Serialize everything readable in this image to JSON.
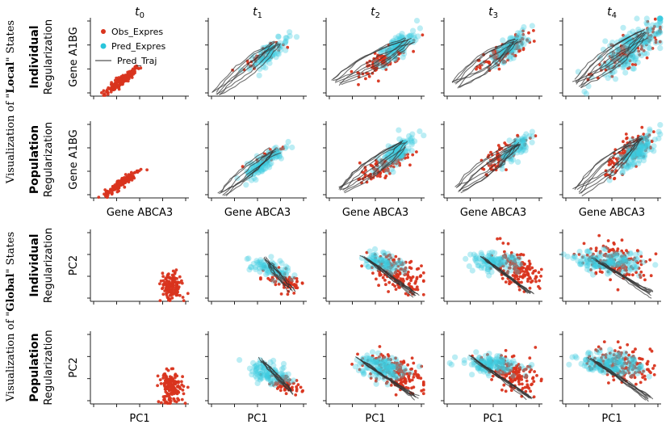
{
  "chart_data": {
    "type": "scatter",
    "time_labels": [
      {
        "base": "t",
        "sub": "0"
      },
      {
        "base": "t",
        "sub": "1"
      },
      {
        "base": "t",
        "sub": "2"
      },
      {
        "base": "t",
        "sub": "3"
      },
      {
        "base": "t",
        "sub": "4"
      }
    ],
    "group_labels": {
      "local": {
        "prefix": "Visualization of \"",
        "bold": "Local",
        "suffix": "\" States"
      },
      "global": {
        "prefix": "Visualization of \"",
        "bold": "Global",
        "suffix": "\" States"
      }
    },
    "row_labels": [
      {
        "bold": "Individual",
        "normal": "Regularization",
        "ylabel": "Gene A1BG",
        "xlabel": ""
      },
      {
        "bold": "Population",
        "normal": "Regularization",
        "ylabel": "Gene A1BG",
        "xlabel": "Gene ABCA3"
      },
      {
        "bold": "Individual",
        "normal": "Regularization",
        "ylabel": "PC2",
        "xlabel": ""
      },
      {
        "bold": "Population",
        "normal": "Regularization",
        "ylabel": "PC2",
        "xlabel": "PC1"
      }
    ],
    "legend": [
      {
        "label": "Obs_Expres",
        "kind": "point",
        "color": "#d9341e"
      },
      {
        "label": "Pred_Expres",
        "kind": "point",
        "color": "#29c5db"
      },
      {
        "label": "Pred_Traj",
        "kind": "line",
        "color": "#555555"
      }
    ],
    "colors": {
      "obs": "#d9341e",
      "pred": "#3ccbe0",
      "traj": "#333333"
    },
    "description_note": "Approximate point clouds read from the figure; coordinates are normalized axis units (0-1).",
    "panels": [
      [
        {
          "obs": {
            "cx": 0.32,
            "cy": 0.2,
            "sx": 0.09,
            "sy": 0.09,
            "corr": 0.93,
            "n": 150
          },
          "pred": null,
          "traj": null
        },
        {
          "obs": {
            "cx": 0.56,
            "cy": 0.52,
            "sx": 0.09,
            "sy": 0.08,
            "corr": 0.85,
            "n": 60
          },
          "pred": {
            "cx": 0.62,
            "cy": 0.55,
            "sx": 0.1,
            "sy": 0.1,
            "corr": 0.8,
            "n": 90
          },
          "traj": {
            "start": [
              0.08,
              0.02
            ],
            "end": [
              0.7,
              0.68
            ],
            "n": 7,
            "spread": 0.07,
            "bend": 0.04
          }
        },
        {
          "obs": {
            "cx": 0.6,
            "cy": 0.48,
            "sx": 0.12,
            "sy": 0.1,
            "corr": 0.8,
            "n": 120
          },
          "pred": {
            "cx": 0.72,
            "cy": 0.62,
            "sx": 0.1,
            "sy": 0.12,
            "corr": 0.75,
            "n": 110
          },
          "traj": {
            "start": [
              0.1,
              0.18
            ],
            "end": [
              0.85,
              0.72
            ],
            "n": 8,
            "spread": 0.08,
            "bend": 0.05
          }
        },
        {
          "obs": {
            "cx": 0.62,
            "cy": 0.55,
            "sx": 0.13,
            "sy": 0.12,
            "corr": 0.8,
            "n": 120
          },
          "pred": {
            "cx": 0.66,
            "cy": 0.62,
            "sx": 0.09,
            "sy": 0.1,
            "corr": 0.75,
            "n": 90
          },
          "traj": {
            "start": [
              0.12,
              0.15
            ],
            "end": [
              0.75,
              0.7
            ],
            "n": 8,
            "spread": 0.08,
            "bend": 0.05
          }
        },
        {
          "obs": {
            "cx": 0.68,
            "cy": 0.58,
            "sx": 0.16,
            "sy": 0.15,
            "corr": 0.8,
            "n": 160
          },
          "pred": {
            "cx": 0.7,
            "cy": 0.62,
            "sx": 0.18,
            "sy": 0.2,
            "corr": 0.78,
            "n": 200
          },
          "traj": {
            "start": [
              0.15,
              0.15
            ],
            "end": [
              0.82,
              0.8
            ],
            "n": 9,
            "spread": 0.09,
            "bend": 0.05
          }
        }
      ],
      [
        {
          "obs": {
            "cx": 0.32,
            "cy": 0.2,
            "sx": 0.09,
            "sy": 0.09,
            "corr": 0.93,
            "n": 150
          },
          "pred": null,
          "traj": null
        },
        {
          "obs": {
            "cx": 0.62,
            "cy": 0.55,
            "sx": 0.08,
            "sy": 0.08,
            "corr": 0.85,
            "n": 50
          },
          "pred": {
            "cx": 0.55,
            "cy": 0.45,
            "sx": 0.11,
            "sy": 0.11,
            "corr": 0.85,
            "n": 110
          },
          "traj": {
            "start": [
              0.15,
              0.05
            ],
            "end": [
              0.68,
              0.62
            ],
            "n": 7,
            "spread": 0.06,
            "bend": 0.03
          }
        },
        {
          "obs": {
            "cx": 0.58,
            "cy": 0.4,
            "sx": 0.12,
            "sy": 0.1,
            "corr": 0.8,
            "n": 110
          },
          "pred": {
            "cx": 0.7,
            "cy": 0.58,
            "sx": 0.1,
            "sy": 0.12,
            "corr": 0.78,
            "n": 110
          },
          "traj": {
            "start": [
              0.15,
              0.1
            ],
            "end": [
              0.8,
              0.72
            ],
            "n": 8,
            "spread": 0.07,
            "bend": 0.04
          }
        },
        {
          "obs": {
            "cx": 0.62,
            "cy": 0.58,
            "sx": 0.12,
            "sy": 0.12,
            "corr": 0.8,
            "n": 110
          },
          "pred": {
            "cx": 0.7,
            "cy": 0.62,
            "sx": 0.08,
            "sy": 0.1,
            "corr": 0.75,
            "n": 80
          },
          "traj": {
            "start": [
              0.15,
              0.1
            ],
            "end": [
              0.75,
              0.7
            ],
            "n": 8,
            "spread": 0.07,
            "bend": 0.04
          }
        },
        {
          "obs": {
            "cx": 0.7,
            "cy": 0.6,
            "sx": 0.13,
            "sy": 0.14,
            "corr": 0.8,
            "n": 150
          },
          "pred": {
            "cx": 0.75,
            "cy": 0.6,
            "sx": 0.1,
            "sy": 0.13,
            "corr": 0.78,
            "n": 130
          },
          "traj": {
            "start": [
              0.15,
              0.08
            ],
            "end": [
              0.8,
              0.78
            ],
            "n": 8,
            "spread": 0.08,
            "bend": 0.05
          }
        }
      ],
      [
        {
          "obs": {
            "cx": 0.82,
            "cy": 0.2,
            "sx": 0.05,
            "sy": 0.1,
            "corr": 0.0,
            "n": 150
          },
          "pred": null,
          "traj": null
        },
        {
          "obs": {
            "cx": 0.78,
            "cy": 0.28,
            "sx": 0.09,
            "sy": 0.08,
            "corr": -0.5,
            "n": 90
          },
          "pred": {
            "cx": 0.62,
            "cy": 0.45,
            "sx": 0.1,
            "sy": 0.07,
            "corr": -0.4,
            "n": 80
          },
          "traj": {
            "start": [
              0.6,
              0.58
            ],
            "end": [
              0.85,
              0.15
            ],
            "n": 7,
            "spread": 0.06,
            "bend": 0.05
          }
        },
        {
          "obs": {
            "cx": 0.72,
            "cy": 0.4,
            "sx": 0.14,
            "sy": 0.13,
            "corr": -0.5,
            "n": 170
          },
          "pred": {
            "cx": 0.58,
            "cy": 0.55,
            "sx": 0.1,
            "sy": 0.07,
            "corr": -0.3,
            "n": 80
          },
          "traj": {
            "start": [
              0.4,
              0.6
            ],
            "end": [
              0.9,
              0.1
            ],
            "n": 8,
            "spread": 0.08,
            "bend": 0.06
          }
        },
        {
          "obs": {
            "cx": 0.72,
            "cy": 0.45,
            "sx": 0.12,
            "sy": 0.13,
            "corr": -0.5,
            "n": 170
          },
          "pred": {
            "cx": 0.5,
            "cy": 0.55,
            "sx": 0.13,
            "sy": 0.06,
            "corr": -0.2,
            "n": 100
          },
          "traj": {
            "start": [
              0.4,
              0.6
            ],
            "end": [
              0.88,
              0.12
            ],
            "n": 8,
            "spread": 0.08,
            "bend": 0.06
          }
        },
        {
          "obs": {
            "cx": 0.55,
            "cy": 0.55,
            "sx": 0.16,
            "sy": 0.12,
            "corr": -0.3,
            "n": 170
          },
          "pred": {
            "cx": 0.45,
            "cy": 0.55,
            "sx": 0.18,
            "sy": 0.07,
            "corr": -0.2,
            "n": 140
          },
          "traj": {
            "start": [
              0.35,
              0.55
            ],
            "end": [
              0.9,
              0.1
            ],
            "n": 8,
            "spread": 0.08,
            "bend": 0.06
          }
        }
      ],
      [
        {
          "obs": {
            "cx": 0.82,
            "cy": 0.22,
            "sx": 0.06,
            "sy": 0.11,
            "corr": 0.0,
            "n": 150
          },
          "pred": null,
          "traj": null
        },
        {
          "obs": {
            "cx": 0.78,
            "cy": 0.28,
            "sx": 0.08,
            "sy": 0.07,
            "corr": -0.5,
            "n": 80
          },
          "pred": {
            "cx": 0.62,
            "cy": 0.42,
            "sx": 0.1,
            "sy": 0.08,
            "corr": -0.4,
            "n": 100
          },
          "traj": {
            "start": [
              0.55,
              0.6
            ],
            "end": [
              0.85,
              0.15
            ],
            "n": 7,
            "spread": 0.06,
            "bend": 0.05
          }
        },
        {
          "obs": {
            "cx": 0.7,
            "cy": 0.45,
            "sx": 0.14,
            "sy": 0.13,
            "corr": -0.5,
            "n": 180
          },
          "pred": {
            "cx": 0.55,
            "cy": 0.5,
            "sx": 0.12,
            "sy": 0.09,
            "corr": -0.3,
            "n": 130
          },
          "traj": {
            "start": [
              0.35,
              0.6
            ],
            "end": [
              0.9,
              0.1
            ],
            "n": 8,
            "spread": 0.08,
            "bend": 0.06
          }
        },
        {
          "obs": {
            "cx": 0.68,
            "cy": 0.42,
            "sx": 0.13,
            "sy": 0.13,
            "corr": -0.5,
            "n": 170
          },
          "pred": {
            "cx": 0.48,
            "cy": 0.55,
            "sx": 0.15,
            "sy": 0.06,
            "corr": -0.2,
            "n": 120
          },
          "traj": {
            "start": [
              0.3,
              0.62
            ],
            "end": [
              0.88,
              0.08
            ],
            "n": 8,
            "spread": 0.08,
            "bend": 0.06
          }
        },
        {
          "obs": {
            "cx": 0.6,
            "cy": 0.55,
            "sx": 0.15,
            "sy": 0.12,
            "corr": -0.3,
            "n": 170
          },
          "pred": {
            "cx": 0.5,
            "cy": 0.55,
            "sx": 0.16,
            "sy": 0.08,
            "corr": -0.2,
            "n": 150
          },
          "traj": {
            "start": [
              0.3,
              0.6
            ],
            "end": [
              0.9,
              0.08
            ],
            "n": 8,
            "spread": 0.08,
            "bend": 0.06
          }
        }
      ]
    ]
  }
}
